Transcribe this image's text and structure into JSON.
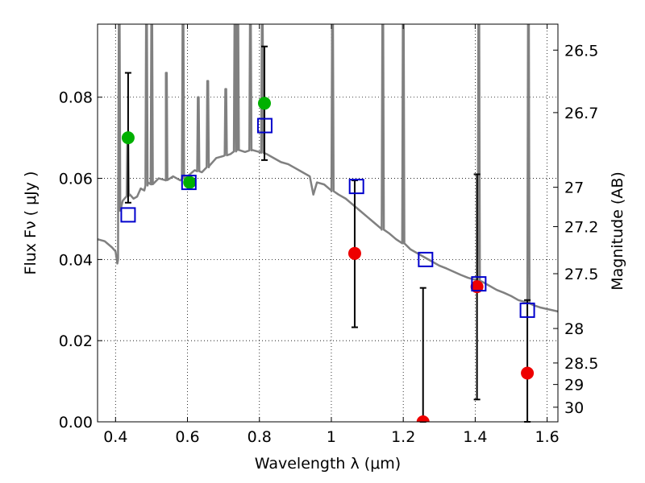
{
  "chart_data": {
    "type": "scatter",
    "xlabel": "Wavelength  λ (μm)",
    "ylabel": "Flux  Fν  ( μJy )",
    "y2label": "Magnitude (AB)",
    "xlim": [
      0.35,
      1.63
    ],
    "ylim": [
      0.0,
      0.098
    ],
    "grid": true,
    "x_ticks": [
      0.4,
      0.6,
      0.8,
      1.0,
      1.2,
      1.4,
      1.6
    ],
    "x_tick_labels": [
      "0.4",
      "0.6",
      "0.8",
      "1",
      "1.2",
      "1.4",
      "1.6"
    ],
    "y_ticks": [
      0.0,
      0.02,
      0.04,
      0.06,
      0.08
    ],
    "y_tick_labels": [
      "0.00",
      "0.02",
      "0.04",
      "0.06",
      "0.08"
    ],
    "y2_ticks": [
      {
        "label": "26.5",
        "flux": 0.0916
      },
      {
        "label": "26.7",
        "flux": 0.0762
      },
      {
        "label": "27",
        "flux": 0.0578
      },
      {
        "label": "27.2",
        "flux": 0.0481
      },
      {
        "label": "27.5",
        "flux": 0.0365
      },
      {
        "label": "28",
        "flux": 0.023
      },
      {
        "label": "28.5",
        "flux": 0.0145
      },
      {
        "label": "29",
        "flux": 0.0092
      },
      {
        "label": "30",
        "flux": 0.0036
      }
    ],
    "model_spectrum": {
      "color": "#808080",
      "points": [
        [
          0.35,
          0.045
        ],
        [
          0.37,
          0.0445
        ],
        [
          0.39,
          0.043
        ],
        [
          0.4,
          0.042
        ],
        [
          0.405,
          0.039
        ],
        [
          0.407,
          0.04
        ],
        [
          0.41,
          0.052
        ],
        [
          0.42,
          0.0545
        ],
        [
          0.43,
          0.0555
        ],
        [
          0.44,
          0.056
        ],
        [
          0.45,
          0.055
        ],
        [
          0.46,
          0.0555
        ],
        [
          0.47,
          0.0575
        ],
        [
          0.48,
          0.057
        ],
        [
          0.49,
          0.059
        ],
        [
          0.5,
          0.0585
        ],
        [
          0.52,
          0.06
        ],
        [
          0.54,
          0.0595
        ],
        [
          0.56,
          0.0605
        ],
        [
          0.58,
          0.0595
        ],
        [
          0.6,
          0.0605
        ],
        [
          0.62,
          0.062
        ],
        [
          0.64,
          0.0615
        ],
        [
          0.66,
          0.063
        ],
        [
          0.68,
          0.065
        ],
        [
          0.7,
          0.0655
        ],
        [
          0.72,
          0.066
        ],
        [
          0.74,
          0.067
        ],
        [
          0.76,
          0.0665
        ],
        [
          0.78,
          0.067
        ],
        [
          0.8,
          0.0665
        ],
        [
          0.82,
          0.066
        ],
        [
          0.84,
          0.065
        ],
        [
          0.86,
          0.064
        ],
        [
          0.88,
          0.0635
        ],
        [
          0.9,
          0.0625
        ],
        [
          0.92,
          0.0615
        ],
        [
          0.94,
          0.0605
        ],
        [
          0.95,
          0.056
        ],
        [
          0.96,
          0.059
        ],
        [
          0.98,
          0.0585
        ],
        [
          1.0,
          0.057
        ],
        [
          1.02,
          0.056
        ],
        [
          1.04,
          0.055
        ],
        [
          1.06,
          0.0535
        ],
        [
          1.08,
          0.052
        ],
        [
          1.1,
          0.0505
        ],
        [
          1.12,
          0.049
        ],
        [
          1.14,
          0.0475
        ],
        [
          1.16,
          0.0465
        ],
        [
          1.18,
          0.045
        ],
        [
          1.2,
          0.044
        ],
        [
          1.22,
          0.0425
        ],
        [
          1.24,
          0.0415
        ],
        [
          1.26,
          0.0405
        ],
        [
          1.28,
          0.0395
        ],
        [
          1.3,
          0.0385
        ],
        [
          1.32,
          0.0378
        ],
        [
          1.34,
          0.037
        ],
        [
          1.36,
          0.0362
        ],
        [
          1.38,
          0.0355
        ],
        [
          1.4,
          0.035
        ],
        [
          1.42,
          0.0345
        ],
        [
          1.44,
          0.0335
        ],
        [
          1.46,
          0.0325
        ],
        [
          1.48,
          0.0318
        ],
        [
          1.5,
          0.031
        ],
        [
          1.52,
          0.03
        ],
        [
          1.54,
          0.0295
        ],
        [
          1.56,
          0.0288
        ],
        [
          1.58,
          0.0282
        ],
        [
          1.6,
          0.0278
        ],
        [
          1.63,
          0.0272
        ]
      ],
      "emission_lines": [
        {
          "x": 0.4102,
          "peak": 0.098
        },
        {
          "x": 0.434,
          "peak": 0.07
        },
        {
          "x": 0.4861,
          "peak": 0.098
        },
        {
          "x": 0.5007,
          "peak": 0.098
        },
        {
          "x": 0.5412,
          "peak": 0.086
        },
        {
          "x": 0.5876,
          "peak": 0.098
        },
        {
          "x": 0.63,
          "peak": 0.08
        },
        {
          "x": 0.6563,
          "peak": 0.084
        },
        {
          "x": 0.7065,
          "peak": 0.082
        },
        {
          "x": 0.732,
          "peak": 0.098
        },
        {
          "x": 0.74,
          "peak": 0.098
        },
        {
          "x": 0.775,
          "peak": 0.098
        },
        {
          "x": 0.808,
          "peak": 0.098
        },
        {
          "x": 1.0033,
          "peak": 0.098
        },
        {
          "x": 1.143,
          "peak": 0.098
        },
        {
          "x": 1.2,
          "peak": 0.098
        },
        {
          "x": 1.41,
          "peak": 0.098
        },
        {
          "x": 1.548,
          "peak": 0.098
        }
      ]
    },
    "observed_green": {
      "color": "#00b000",
      "points": [
        {
          "x": 0.435,
          "y": 0.07,
          "err_low": 0.054,
          "err_high": 0.086
        },
        {
          "x": 0.606,
          "y": 0.059
        },
        {
          "x": 0.814,
          "y": 0.0785,
          "err_low": 0.0645,
          "err_high": 0.0925
        }
      ]
    },
    "observed_red": {
      "color": "#ee0000",
      "points": [
        {
          "x": 1.065,
          "y": 0.0415,
          "err_low": 0.0233,
          "err_high": 0.0595
        },
        {
          "x": 1.255,
          "y": 0.0,
          "err_low": 0.0,
          "err_high": 0.033
        },
        {
          "x": 1.405,
          "y": 0.0333,
          "err_low": 0.0055,
          "err_high": 0.061
        },
        {
          "x": 1.545,
          "y": 0.012,
          "err_low": 0.0,
          "err_high": 0.03
        }
      ]
    },
    "model_photometry": {
      "color": "#0000cc",
      "points": [
        {
          "x": 0.435,
          "y": 0.051
        },
        {
          "x": 0.604,
          "y": 0.059
        },
        {
          "x": 0.815,
          "y": 0.073
        },
        {
          "x": 1.07,
          "y": 0.058
        },
        {
          "x": 1.262,
          "y": 0.04
        },
        {
          "x": 1.41,
          "y": 0.034
        },
        {
          "x": 1.545,
          "y": 0.0275
        }
      ]
    }
  }
}
